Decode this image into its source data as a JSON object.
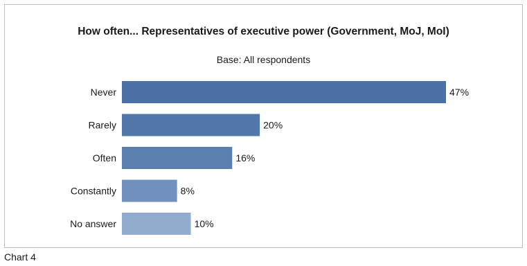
{
  "chart_data": {
    "type": "bar",
    "orientation": "horizontal",
    "title": "How often... Representatives of executive power (Government, MoJ, MoI)",
    "subtitle": "Base: All respondents",
    "categories": [
      "Never",
      "Rarely",
      "Often",
      "Constantly",
      "No answer"
    ],
    "values": [
      47,
      20,
      16,
      8,
      10
    ],
    "value_labels": [
      "47%",
      "20%",
      "16%",
      "8%",
      "10%"
    ],
    "bar_colors": [
      "#4a72a6",
      "#4f77aa",
      "#5a80b0",
      "#7292bd",
      "#92acce"
    ],
    "xlim": [
      0,
      47
    ],
    "grid": false,
    "legend": "none"
  },
  "caption": "Chart 4"
}
